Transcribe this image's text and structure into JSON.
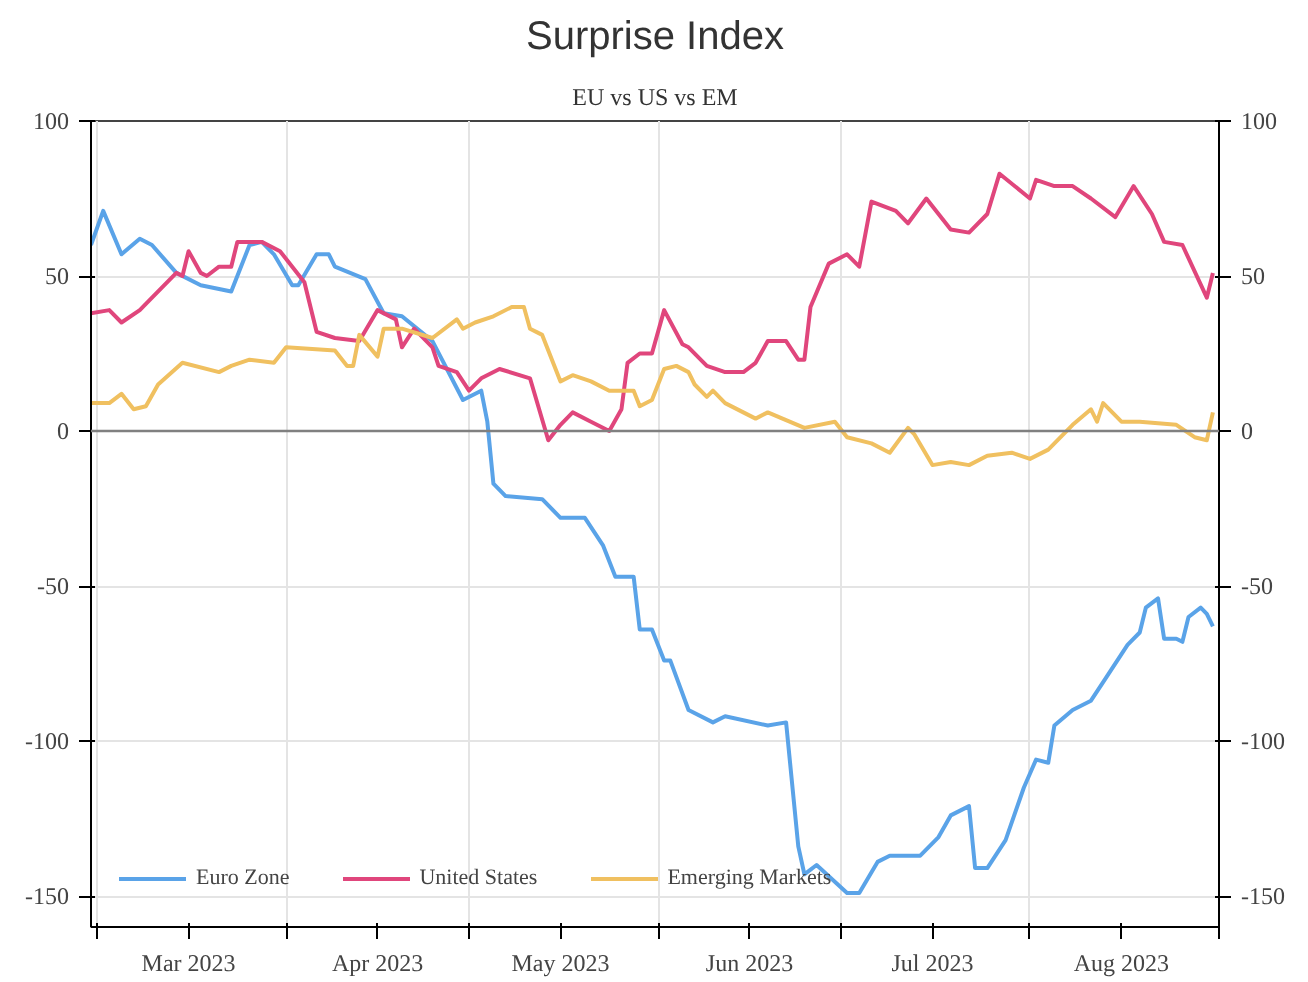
{
  "chart_data": {
    "type": "line",
    "title": "Surprise Index",
    "subtitle": "EU vs US vs EM",
    "xlim": [
      "2023-02-28",
      "2023-09-01"
    ],
    "xticks": [
      {
        "value": "2023-03-01",
        "label": null
      },
      {
        "value": "2023-03-16",
        "label": "Mar 2023"
      },
      {
        "value": "2023-04-01",
        "label": null
      },
      {
        "value": "2023-04-16",
        "label": "Apr 2023"
      },
      {
        "value": "2023-05-01",
        "label": null
      },
      {
        "value": "2023-05-16",
        "label": "May 2023"
      },
      {
        "value": "2023-06-01",
        "label": null
      },
      {
        "value": "2023-06-16",
        "label": "Jun 2023"
      },
      {
        "value": "2023-07-01",
        "label": null
      },
      {
        "value": "2023-07-16",
        "label": "Jul 2023"
      },
      {
        "value": "2023-08-01",
        "label": null
      },
      {
        "value": "2023-08-16",
        "label": "Aug 2023"
      },
      {
        "value": "2023-09-01",
        "label": null
      }
    ],
    "ylim": [
      -160,
      100
    ],
    "yticks": [
      -150,
      -100,
      -50,
      0,
      50,
      100
    ],
    "y2lim": [
      -160,
      100
    ],
    "y2ticks": [
      -150,
      -100,
      -50,
      0,
      50,
      100
    ],
    "grid": true,
    "legend": "bottom left",
    "line_style": "solid",
    "ref_lines": [
      {
        "axis": "y",
        "value": 0,
        "label": null,
        "color": "#808080"
      }
    ],
    "series": [
      {
        "name": "Euro Zone",
        "color": "#5aa3e8",
        "x": [
          "2023-02-28",
          "2023-03-02",
          "2023-03-05",
          "2023-03-08",
          "2023-03-10",
          "2023-03-14",
          "2023-03-18",
          "2023-03-23",
          "2023-03-26",
          "2023-03-28",
          "2023-03-30",
          "2023-04-02",
          "2023-04-03",
          "2023-04-06",
          "2023-04-08",
          "2023-04-09",
          "2023-04-14",
          "2023-04-17",
          "2023-04-20",
          "2023-04-25",
          "2023-04-30",
          "2023-05-03",
          "2023-05-04",
          "2023-05-05",
          "2023-05-07",
          "2023-05-13",
          "2023-05-16",
          "2023-05-20",
          "2023-05-23",
          "2023-05-25",
          "2023-05-28",
          "2023-05-29",
          "2023-05-31",
          "2023-06-02",
          "2023-06-03",
          "2023-06-06",
          "2023-06-10",
          "2023-06-12",
          "2023-06-19",
          "2023-06-22",
          "2023-06-24",
          "2023-06-25",
          "2023-06-27",
          "2023-07-02",
          "2023-07-04",
          "2023-07-07",
          "2023-07-09",
          "2023-07-12",
          "2023-07-14",
          "2023-07-17",
          "2023-07-19",
          "2023-07-22",
          "2023-07-23",
          "2023-07-25",
          "2023-07-28",
          "2023-07-31",
          "2023-08-02",
          "2023-08-04",
          "2023-08-05",
          "2023-08-08",
          "2023-08-11",
          "2023-08-13",
          "2023-08-17",
          "2023-08-19",
          "2023-08-20",
          "2023-08-22",
          "2023-08-23",
          "2023-08-25",
          "2023-08-26",
          "2023-08-27",
          "2023-08-29",
          "2023-08-30",
          "2023-08-31"
        ],
        "values": [
          60,
          71,
          57,
          62,
          60,
          51,
          47,
          45,
          60,
          61,
          57,
          47,
          47,
          57,
          57,
          53,
          49,
          38,
          37,
          29,
          10,
          13,
          3,
          -17,
          -21,
          -22,
          -28,
          -28,
          -37,
          -47,
          -47,
          -64,
          -64,
          -74,
          -74,
          -90,
          -94,
          -92,
          -95,
          -94,
          -134,
          -143,
          -140,
          -149,
          -149,
          -139,
          -137,
          -137,
          -137,
          -131,
          -124,
          -121,
          -141,
          -141,
          -132,
          -115,
          -106,
          -107,
          -95,
          -90,
          -87,
          -81,
          -69,
          -65,
          -57,
          -54,
          -67,
          -67,
          -68,
          -60,
          -57,
          -59,
          -63
        ]
      },
      {
        "name": "United States",
        "color": "#e0467c",
        "x": [
          "2023-02-28",
          "2023-03-03",
          "2023-03-05",
          "2023-03-08",
          "2023-03-09",
          "2023-03-14",
          "2023-03-15",
          "2023-03-16",
          "2023-03-18",
          "2023-03-19",
          "2023-03-21",
          "2023-03-23",
          "2023-03-24",
          "2023-03-28",
          "2023-03-31",
          "2023-04-04",
          "2023-04-06",
          "2023-04-09",
          "2023-04-13",
          "2023-04-16",
          "2023-04-19",
          "2023-04-20",
          "2023-04-22",
          "2023-04-25",
          "2023-04-26",
          "2023-04-29",
          "2023-05-01",
          "2023-05-03",
          "2023-05-06",
          "2023-05-11",
          "2023-05-14",
          "2023-05-16",
          "2023-05-18",
          "2023-05-21",
          "2023-05-24",
          "2023-05-26",
          "2023-05-27",
          "2023-05-29",
          "2023-05-31",
          "2023-06-02",
          "2023-06-05",
          "2023-06-06",
          "2023-06-09",
          "2023-06-12",
          "2023-06-15",
          "2023-06-17",
          "2023-06-19",
          "2023-06-22",
          "2023-06-24",
          "2023-06-25",
          "2023-06-26",
          "2023-06-29",
          "2023-07-02",
          "2023-07-04",
          "2023-07-06",
          "2023-07-10",
          "2023-07-12",
          "2023-07-15",
          "2023-07-19",
          "2023-07-22",
          "2023-07-25",
          "2023-07-27",
          "2023-08-01",
          "2023-08-02",
          "2023-08-05",
          "2023-08-08",
          "2023-08-11",
          "2023-08-15",
          "2023-08-18",
          "2023-08-21",
          "2023-08-23",
          "2023-08-26",
          "2023-08-30",
          "2023-08-31"
        ],
        "values": [
          38,
          39,
          35,
          39,
          41,
          51,
          50,
          58,
          51,
          50,
          53,
          53,
          61,
          61,
          58,
          48,
          32,
          30,
          29,
          39,
          36,
          27,
          33,
          27,
          21,
          19,
          13,
          17,
          20,
          17,
          -3,
          2,
          6,
          3,
          0,
          7,
          22,
          25,
          25,
          39,
          28,
          27,
          21,
          19,
          19,
          22,
          29,
          29,
          23,
          23,
          40,
          54,
          57,
          53,
          74,
          71,
          67,
          75,
          65,
          64,
          70,
          83,
          75,
          81,
          79,
          79,
          75,
          69,
          79,
          70,
          61,
          60,
          43,
          51
        ]
      },
      {
        "name": "Emerging Markets",
        "color": "#f0c060",
        "x": [
          "2023-02-28",
          "2023-03-03",
          "2023-03-05",
          "2023-03-07",
          "2023-03-09",
          "2023-03-11",
          "2023-03-15",
          "2023-03-21",
          "2023-03-23",
          "2023-03-26",
          "2023-03-30",
          "2023-04-01",
          "2023-04-09",
          "2023-04-11",
          "2023-04-12",
          "2023-04-13",
          "2023-04-16",
          "2023-04-17",
          "2023-04-20",
          "2023-04-25",
          "2023-04-29",
          "2023-04-30",
          "2023-05-02",
          "2023-05-05",
          "2023-05-08",
          "2023-05-10",
          "2023-05-11",
          "2023-05-13",
          "2023-05-16",
          "2023-05-18",
          "2023-05-21",
          "2023-05-24",
          "2023-05-28",
          "2023-05-29",
          "2023-05-31",
          "2023-06-02",
          "2023-06-04",
          "2023-06-06",
          "2023-06-07",
          "2023-06-09",
          "2023-06-10",
          "2023-06-12",
          "2023-06-17",
          "2023-06-19",
          "2023-06-25",
          "2023-06-30",
          "2023-07-02",
          "2023-07-06",
          "2023-07-09",
          "2023-07-12",
          "2023-07-13",
          "2023-07-16",
          "2023-07-19",
          "2023-07-22",
          "2023-07-25",
          "2023-07-29",
          "2023-08-01",
          "2023-08-04",
          "2023-08-08",
          "2023-08-11",
          "2023-08-12",
          "2023-08-13",
          "2023-08-16",
          "2023-08-19",
          "2023-08-25",
          "2023-08-28",
          "2023-08-30",
          "2023-08-31"
        ],
        "values": [
          9,
          9,
          12,
          7,
          8,
          15,
          22,
          19,
          21,
          23,
          22,
          27,
          26,
          21,
          21,
          31,
          24,
          33,
          33,
          30,
          36,
          33,
          35,
          37,
          40,
          40,
          33,
          31,
          16,
          18,
          16,
          13,
          13,
          8,
          10,
          20,
          21,
          19,
          15,
          11,
          13,
          9,
          4,
          6,
          1,
          3,
          -2,
          -4,
          -7,
          1,
          -1,
          -11,
          -10,
          -11,
          -8,
          -7,
          -9,
          -6,
          2,
          7,
          3,
          9,
          3,
          3,
          2,
          -2,
          -3,
          6
        ]
      }
    ]
  }
}
